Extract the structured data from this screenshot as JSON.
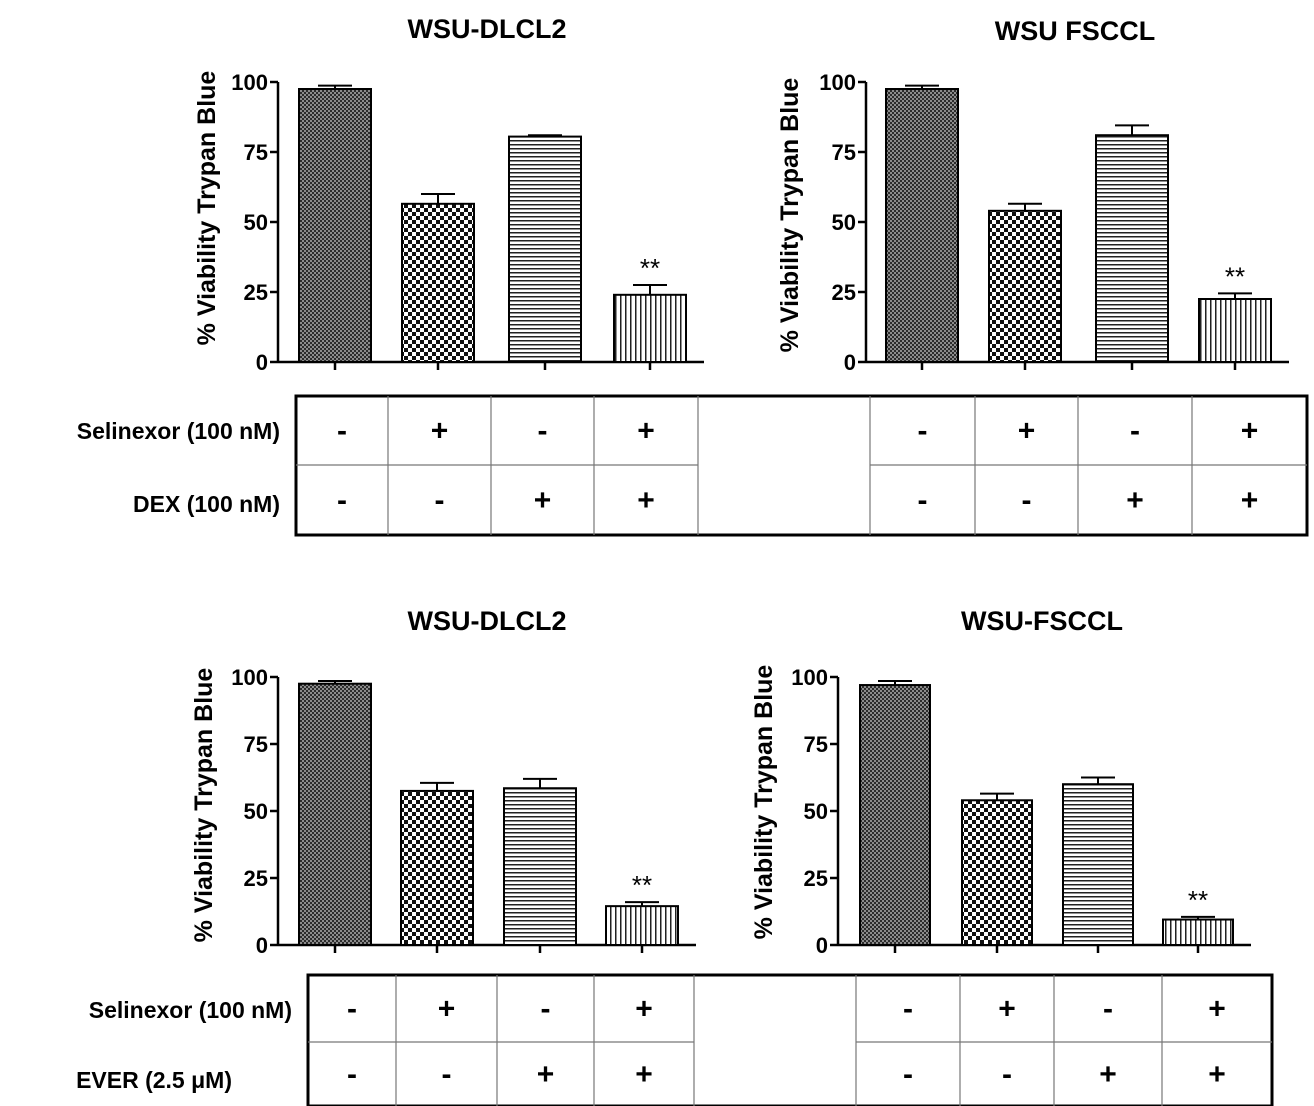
{
  "chart_data": [
    {
      "type": "bar",
      "title": "WSU-DLCL2",
      "ylabel": "% Viability Trypan Blue",
      "ylim": [
        0,
        100
      ],
      "yticks": [
        "0",
        "25",
        "50",
        "75",
        "100"
      ],
      "values": [
        97.5,
        56.5,
        80.5,
        24
      ],
      "errors": [
        1.2,
        3.5,
        0.5,
        3.5
      ],
      "annotations": [
        "",
        "",
        "",
        "**"
      ]
    },
    {
      "type": "bar",
      "title": "WSU FSCCL",
      "ylabel": "% Viability Trypan Blue",
      "ylim": [
        0,
        100
      ],
      "yticks": [
        "0",
        "25",
        "50",
        "75",
        "100"
      ],
      "values": [
        97.5,
        54,
        81,
        22.5
      ],
      "errors": [
        1.2,
        2.5,
        3.5,
        2
      ],
      "annotations": [
        "",
        "",
        "",
        "**"
      ]
    },
    {
      "type": "bar",
      "title": "WSU-DLCL2",
      "ylabel": "% Viability Trypan Blue",
      "ylim": [
        0,
        100
      ],
      "yticks": [
        "0",
        "25",
        "50",
        "75",
        "100"
      ],
      "values": [
        97.5,
        57.5,
        58.5,
        14.5
      ],
      "errors": [
        1,
        3,
        3.5,
        1.5
      ],
      "annotations": [
        "",
        "",
        "",
        "**"
      ]
    },
    {
      "type": "bar",
      "title": "WSU-FSCCL",
      "ylabel": "% Viability Trypan Blue",
      "ylim": [
        0,
        100
      ],
      "yticks": [
        "0",
        "25",
        "50",
        "75",
        "100"
      ],
      "values": [
        97,
        54,
        60,
        9.5
      ],
      "errors": [
        1.5,
        2.5,
        2.5,
        1
      ],
      "annotations": [
        "",
        "",
        "",
        "**"
      ]
    }
  ],
  "tables": [
    {
      "rows": [
        {
          "label": "Selinexor (100 nM)",
          "left": [
            "-",
            "+",
            "-",
            "+"
          ],
          "right": [
            "-",
            "+",
            "-",
            "+"
          ]
        },
        {
          "label": "DEX  (100 nM)",
          "left": [
            "-",
            "-",
            "+",
            "+"
          ],
          "right": [
            "-",
            "-",
            "+",
            "+"
          ]
        }
      ]
    },
    {
      "rows": [
        {
          "label": "Selinexor (100 nM)",
          "left": [
            "-",
            "+",
            "-",
            "+"
          ],
          "right": [
            "-",
            "+",
            "-",
            "+"
          ]
        },
        {
          "label": "EVER (2.5 μM)",
          "left": [
            "-",
            "-",
            "+",
            "+"
          ],
          "right": [
            "-",
            "-",
            "+",
            "+"
          ]
        }
      ]
    }
  ]
}
